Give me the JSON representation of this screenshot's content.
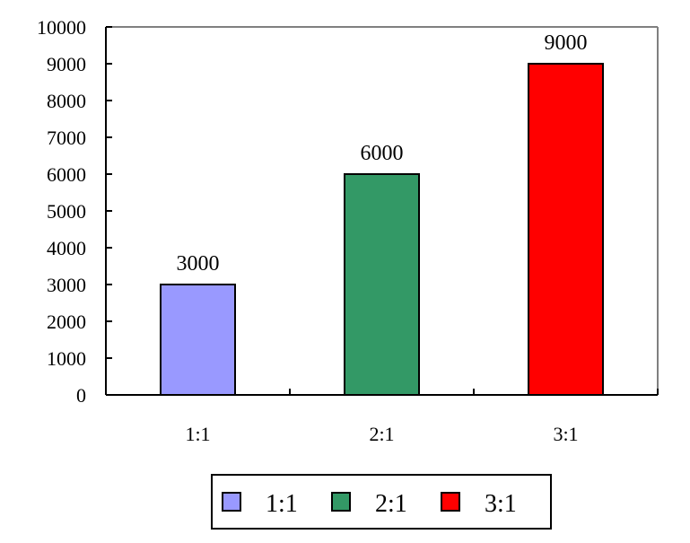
{
  "chart_data": {
    "type": "bar",
    "title": "",
    "xlabel": "",
    "ylabel": "",
    "categories": [
      "1:1",
      "2:1",
      "3:1"
    ],
    "values": [
      3000,
      6000,
      9000
    ],
    "data_labels": [
      "3000",
      "6000",
      "9000"
    ],
    "colors": [
      "#9999ff",
      "#339966",
      "#ff0000"
    ],
    "ylim": [
      0,
      10000
    ],
    "y_ticks": [
      0,
      1000,
      2000,
      3000,
      4000,
      5000,
      6000,
      7000,
      8000,
      9000,
      10000
    ],
    "y_tick_labels": [
      "0",
      "1000",
      "2000",
      "3000",
      "4000",
      "5000",
      "6000",
      "7000",
      "8000",
      "9000",
      "10000"
    ],
    "grid": false,
    "legend": {
      "position": "bottom",
      "entries": [
        "1:1",
        "2:1",
        "3:1"
      ]
    }
  }
}
